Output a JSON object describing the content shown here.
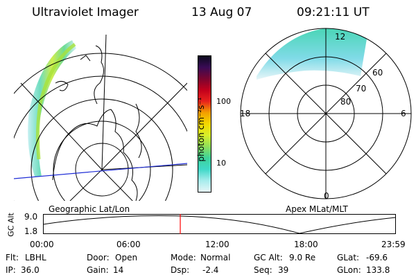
{
  "header": {
    "title": "Ultraviolet Imager",
    "date": "13 Aug 07",
    "time": "09:21:11 UT"
  },
  "left_panel": {
    "caption": "Geographic Lat/Lon"
  },
  "right_panel": {
    "caption": "Apex MLat/MLT",
    "mlt_labels": {
      "top": "12",
      "left": "18",
      "right": "6",
      "bottom": "0"
    },
    "mlat_labels": [
      "60",
      "70",
      "80"
    ]
  },
  "colorbar": {
    "unit_label": "photon cm⁻²s⁻¹",
    "ticks": [
      "100",
      "10"
    ],
    "colors": [
      "#0b0b1e",
      "#3a0b55",
      "#7a0530",
      "#c2001c",
      "#e8221c",
      "#f3a000",
      "#f4d800",
      "#d8ee2a",
      "#8fe05a",
      "#3ed39a",
      "#3fd8c8",
      "#a6ecec",
      "#e6f6f8"
    ]
  },
  "timeline": {
    "ylabel": "GC Alt",
    "ymax_label": "9.0",
    "ymin_label": "1.8",
    "x_ticks": [
      "00:00",
      "06:00",
      "12:00",
      "18:00",
      "23:59"
    ],
    "current_fraction": 0.389,
    "marker_color": "#ff0000"
  },
  "footer": {
    "row1": [
      {
        "label": "Flt:",
        "value": "LBHL"
      },
      {
        "label": "Door:",
        "value": "Open"
      },
      {
        "label": "Mode:",
        "value": "Normal"
      },
      {
        "label": "GC Alt:",
        "value": "9.0 Re"
      },
      {
        "label": "GLat:",
        "value": "-69.6"
      }
    ],
    "row2": [
      {
        "label": "IP:",
        "value": "36.0"
      },
      {
        "label": "Gain:",
        "value": "14"
      },
      {
        "label": "Dsp:",
        "value": "-2.4"
      },
      {
        "label": "Seq:",
        "value": "39"
      },
      {
        "label": "GLon:",
        "value": "133.8"
      }
    ]
  }
}
